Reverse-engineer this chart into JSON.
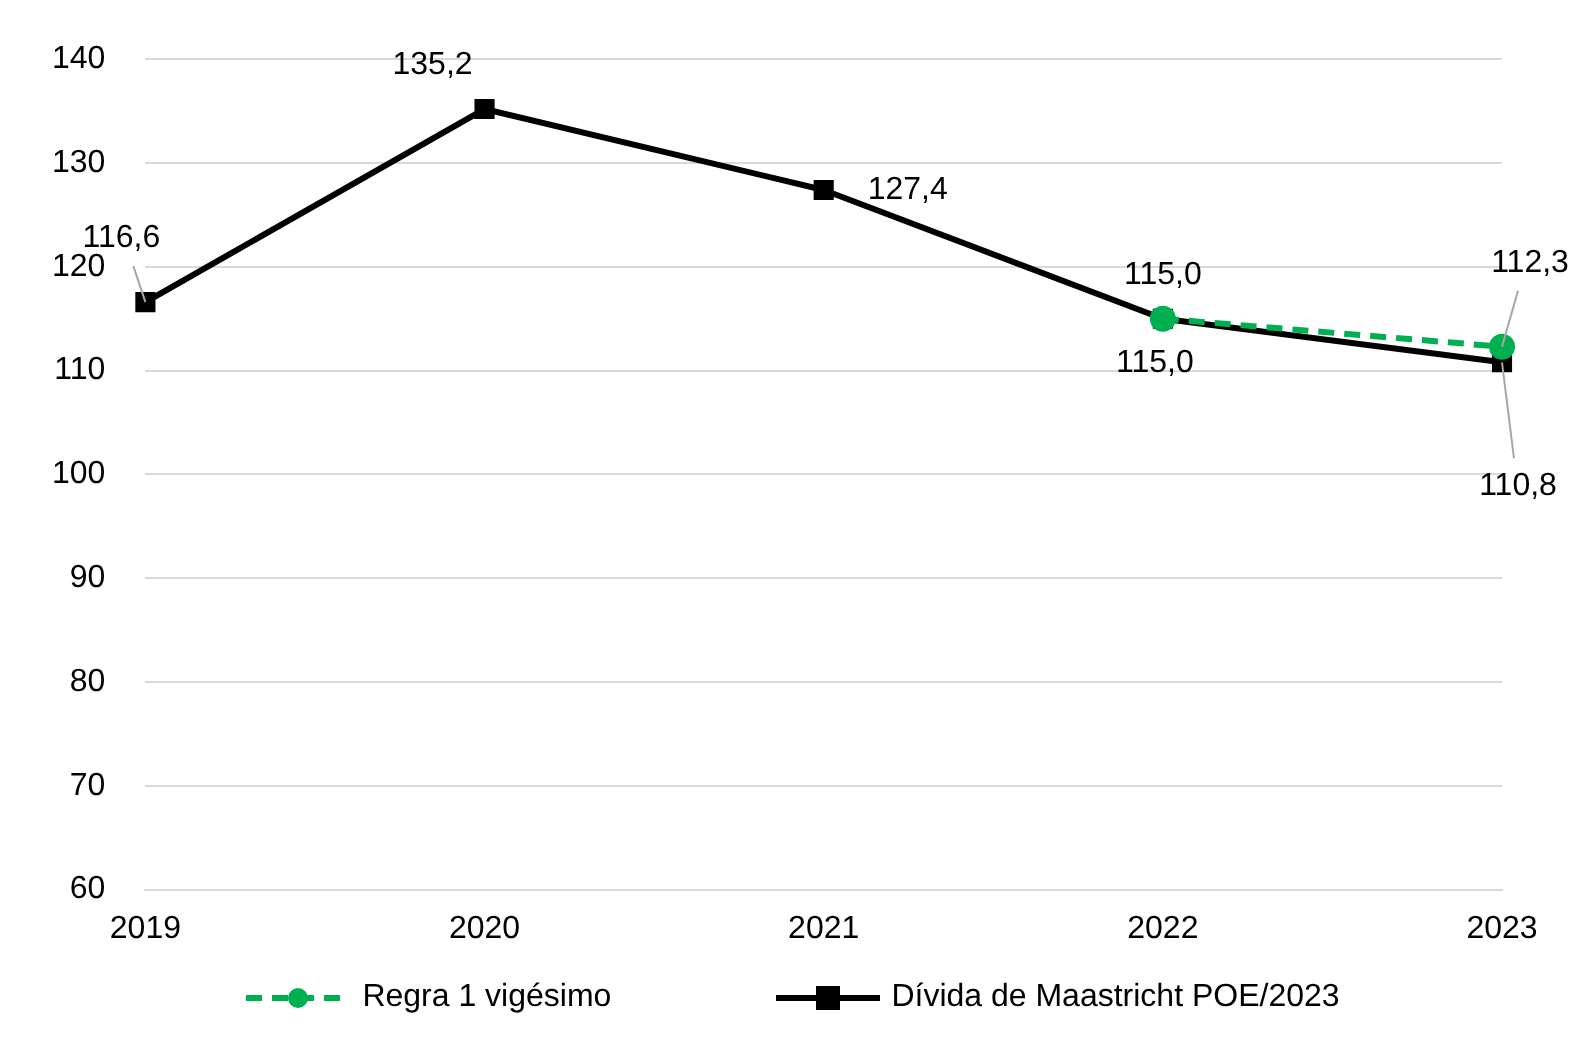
{
  "chart_data": {
    "type": "line",
    "categories": [
      "2019",
      "2020",
      "2021",
      "2022",
      "2023"
    ],
    "series": [
      {
        "name": "Regra 1 vigésimo",
        "color": "#00b050",
        "values": [
          null,
          null,
          null,
          115.0,
          112.3
        ],
        "value_labels": [
          null,
          null,
          null,
          "115,0",
          "112,3"
        ],
        "line_style": "dashed",
        "marker": "circle"
      },
      {
        "name": "Dívida de Maastricht POE/2023",
        "color": "#000000",
        "values": [
          116.6,
          135.2,
          127.4,
          115.0,
          110.8
        ],
        "value_labels": [
          "116,6",
          "135,2",
          "127,4",
          "115,0",
          "110,8"
        ],
        "line_style": "solid",
        "marker": "square"
      }
    ],
    "ylim": [
      60,
      140
    ],
    "yticks": [
      60,
      70,
      80,
      90,
      100,
      110,
      120,
      130,
      140
    ],
    "grid": "y",
    "legend": "bottom"
  }
}
